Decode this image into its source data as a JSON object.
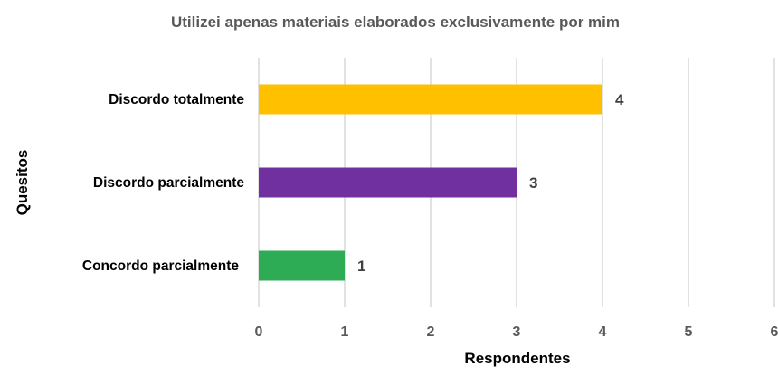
{
  "chart_data": {
    "type": "bar",
    "orientation": "horizontal",
    "title": "Utilizei  apenas materiais elaborados exclusivamente por mim",
    "xlabel": "Respondentes",
    "ylabel": "Quesitos",
    "categories": [
      "Discordo totalmente",
      "Discordo parcialmente",
      "Concordo parcialmente"
    ],
    "values": [
      4,
      3,
      1
    ],
    "colors": [
      "#FFC000",
      "#7030A0",
      "#2EAB55"
    ],
    "xlim": [
      0,
      6
    ],
    "xticks": [
      "0",
      "1",
      "2",
      "3",
      "4",
      "5",
      "6"
    ],
    "grid": true,
    "legend": "none",
    "data_labels": [
      "4",
      "3",
      "1"
    ]
  }
}
